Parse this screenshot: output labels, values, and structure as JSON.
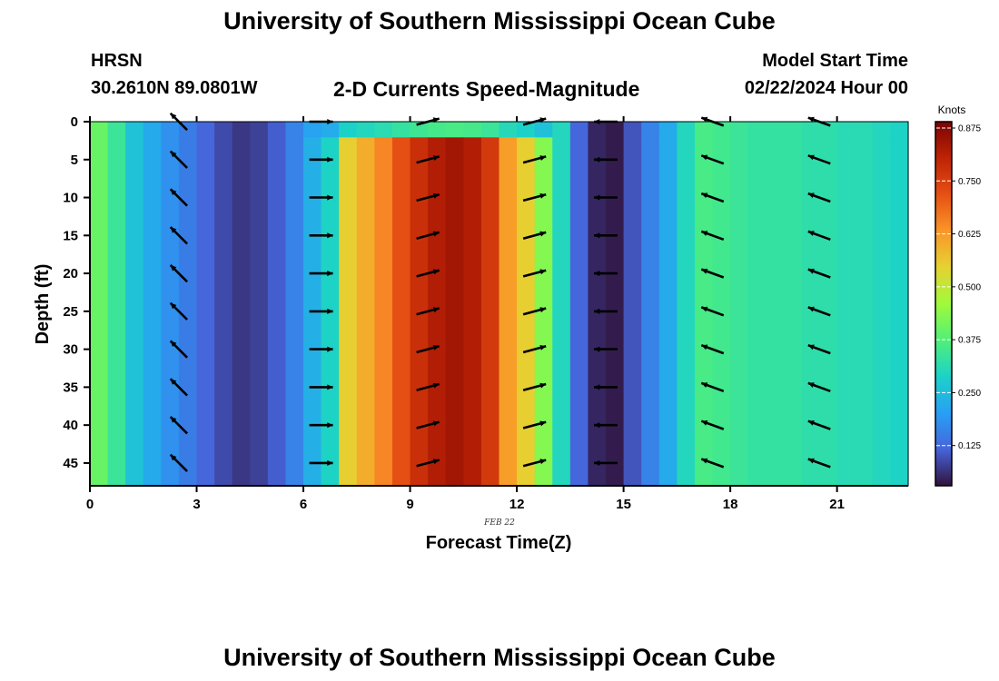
{
  "page": {
    "title_top": "University of Southern Mississippi Ocean Cube",
    "title_bottom": "University of Southern Mississippi Ocean Cube",
    "station": "HRSN",
    "coords": "30.2610N  89.0801W",
    "product": "2-D Currents Speed-Magnitude",
    "model_start_label": "Model Start Time",
    "model_start_value": "02/22/2024 Hour 00",
    "date_tag": "FEB 22"
  },
  "chart_data": {
    "type": "heatmap",
    "title": "2-D Currents Speed-Magnitude",
    "xlabel": "Forecast Time(Z)",
    "ylabel": "Depth (ft)",
    "xlim": [
      0,
      23
    ],
    "ylim": [
      0,
      48
    ],
    "y_inverted": true,
    "xticks": [
      0,
      3,
      6,
      9,
      12,
      15,
      18,
      21
    ],
    "yticks": [
      0,
      5,
      10,
      15,
      20,
      25,
      30,
      35,
      40,
      45
    ],
    "grid": false,
    "colorbar": {
      "label": "Knots",
      "min": 0.03,
      "max": 0.89,
      "ticks": [
        "0.125",
        "0.250",
        "0.375",
        "0.500",
        "0.625",
        "0.750",
        "0.875"
      ],
      "colormap": "turbo"
    },
    "hours": [
      0,
      0.5,
      1,
      1.5,
      2,
      2.5,
      3,
      3.5,
      4,
      4.5,
      5,
      5.5,
      6,
      6.5,
      7,
      7.5,
      8,
      8.5,
      9,
      9.5,
      10,
      10.5,
      11,
      11.5,
      12,
      12.5,
      13,
      13.5,
      14,
      14.5,
      15,
      15.5,
      16,
      16.5,
      17,
      17.5,
      18,
      18.5,
      19,
      19.5,
      20,
      20.5,
      21,
      21.5,
      22,
      22.5
    ],
    "speed_by_hour_knots": [
      0.4,
      0.34,
      0.26,
      0.22,
      0.18,
      0.15,
      0.12,
      0.09,
      0.07,
      0.08,
      0.11,
      0.16,
      0.23,
      0.29,
      0.55,
      0.6,
      0.65,
      0.72,
      0.78,
      0.82,
      0.84,
      0.82,
      0.76,
      0.62,
      0.55,
      0.43,
      0.3,
      0.12,
      0.05,
      0.04,
      0.1,
      0.16,
      0.22,
      0.3,
      0.36,
      0.35,
      0.34,
      0.33,
      0.33,
      0.33,
      0.32,
      0.32,
      0.31,
      0.31,
      0.3,
      0.29
    ],
    "surface_layer_speed_knots": 0.2,
    "vectors": {
      "times": [
        2.5,
        6.5,
        9.5,
        12.5,
        14.5,
        17.5,
        20.5
      ],
      "depths": [
        0,
        5,
        10,
        15,
        20,
        25,
        30,
        35,
        40,
        45
      ],
      "direction_by_time": [
        "SW",
        "E",
        "ENE",
        "ENE",
        "W",
        "WSW",
        "WSW"
      ]
    }
  }
}
